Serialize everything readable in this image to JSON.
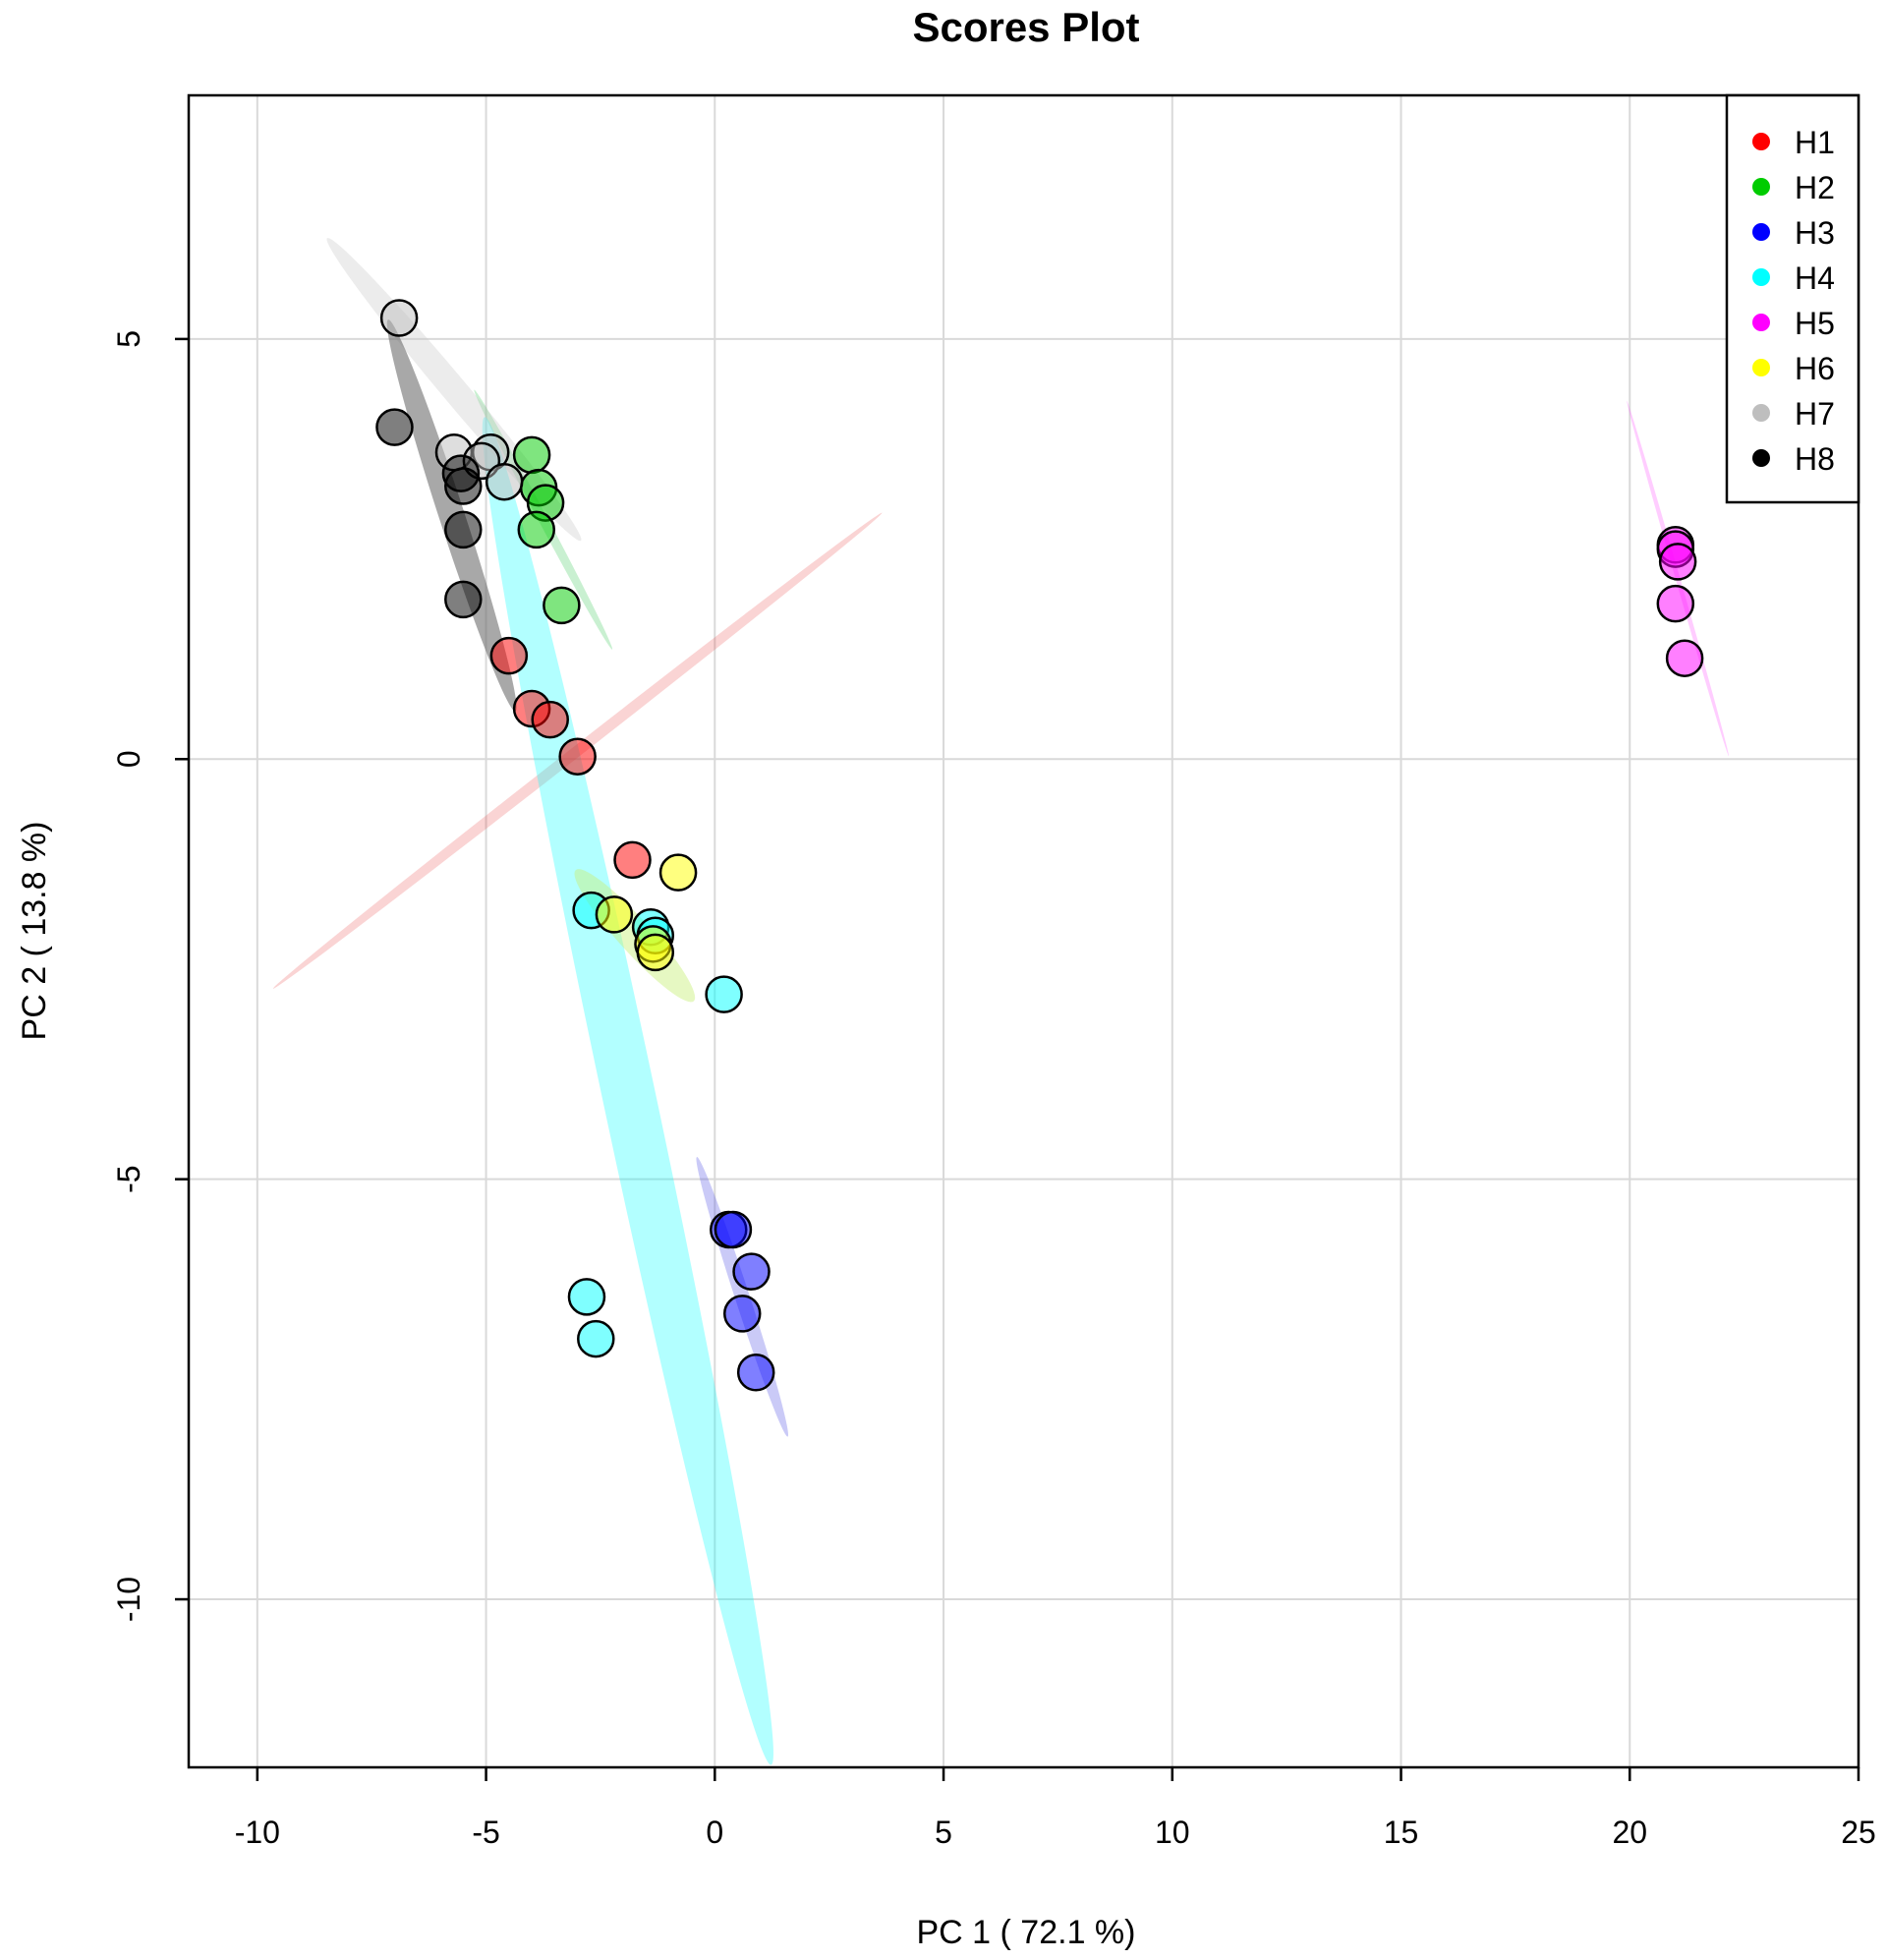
{
  "chart_data": {
    "type": "scatter",
    "title": "Scores Plot",
    "xlabel": "PC 1 ( 72.1 %)",
    "ylabel": "PC 2 ( 13.8 %)",
    "xlim": [
      -11.5,
      25
    ],
    "ylim": [
      -12,
      7.9
    ],
    "xticks": [
      -10,
      -5,
      0,
      5,
      10,
      15,
      20,
      25
    ],
    "yticks": [
      5,
      0,
      -5,
      -10
    ],
    "grid": true,
    "legend_position": "top-right",
    "series": [
      {
        "name": "H1",
        "color": "#ff0000",
        "points": [
          [
            -4.5,
            1.23
          ],
          [
            -4.0,
            0.6
          ],
          [
            -3.6,
            0.47
          ],
          [
            -3.0,
            0.03
          ],
          [
            -1.8,
            -1.2
          ]
        ],
        "ellipse": {
          "center": [
            -3.0,
            0.1
          ],
          "rx_units": 4.6,
          "ry_units": 0.12,
          "angle_deg": -38,
          "fill": "rgba(230,60,60,0.22)"
        }
      },
      {
        "name": "H2",
        "color": "#00cc00",
        "points": [
          [
            -4.0,
            3.62
          ],
          [
            -3.85,
            3.23
          ],
          [
            -3.7,
            3.05
          ],
          [
            -3.9,
            2.73
          ],
          [
            -3.35,
            1.83
          ]
        ],
        "ellipse": {
          "center": [
            -3.75,
            2.85
          ],
          "rx_units": 1.75,
          "ry_units": 0.1,
          "angle_deg": 62,
          "fill": "rgba(60,200,90,0.28)"
        }
      },
      {
        "name": "H3",
        "color": "#0000ff",
        "points": [
          [
            0.3,
            -5.6
          ],
          [
            0.4,
            -5.6
          ],
          [
            0.8,
            -6.1
          ],
          [
            0.6,
            -6.6
          ],
          [
            0.9,
            -7.3
          ]
        ],
        "ellipse": {
          "center": [
            0.6,
            -6.4
          ],
          "rx_units": 1.75,
          "ry_units": 0.16,
          "angle_deg": 72,
          "fill": "rgba(80,80,230,0.3)"
        }
      },
      {
        "name": "H4",
        "color": "#00ffff",
        "points": [
          [
            -2.7,
            -1.8
          ],
          [
            -1.4,
            -2.0
          ],
          [
            -1.3,
            -2.1
          ],
          [
            0.2,
            -2.8
          ],
          [
            -2.8,
            -6.4
          ],
          [
            -2.6,
            -6.9
          ]
        ],
        "ellipse": {
          "center": [
            -1.9,
            -3.95
          ],
          "rx_units": 8.2,
          "ry_units": 0.58,
          "angle_deg": 78,
          "fill": "rgba(0,255,255,0.3)"
        }
      },
      {
        "name": "H5",
        "color": "#ff00ff",
        "points": [
          [
            21.0,
            2.55
          ],
          [
            21.0,
            2.5
          ],
          [
            21.05,
            2.35
          ],
          [
            21.0,
            1.85
          ],
          [
            21.2,
            1.2
          ]
        ],
        "ellipse": {
          "center": [
            21.05,
            2.15
          ],
          "rx_units": 2.2,
          "ry_units": 0.05,
          "angle_deg": 74,
          "fill": "rgba(255,90,255,0.3)"
        }
      },
      {
        "name": "H6",
        "color": "#ffff00",
        "points": [
          [
            -0.8,
            -1.35
          ],
          [
            -2.2,
            -1.85
          ],
          [
            -1.35,
            -2.2
          ],
          [
            -1.3,
            -2.3
          ]
        ],
        "ellipse": {
          "center": [
            -1.75,
            -2.1
          ],
          "rx_units": 1.05,
          "ry_units": 0.36,
          "angle_deg": 48,
          "fill": "rgba(200,240,120,0.45)"
        }
      },
      {
        "name": "H7",
        "color": "#bebebe",
        "points": [
          [
            -6.9,
            5.25
          ],
          [
            -5.7,
            3.65
          ],
          [
            -4.9,
            3.65
          ],
          [
            -5.1,
            3.55
          ],
          [
            -4.6,
            3.3
          ]
        ],
        "ellipse": {
          "center": [
            -5.7,
            4.4
          ],
          "rx_units": 2.35,
          "ry_units": 0.28,
          "angle_deg": 50,
          "fill": "rgba(200,200,200,0.35)"
        }
      },
      {
        "name": "H8",
        "color": "#000000",
        "points": [
          [
            -7.0,
            3.95
          ],
          [
            -5.55,
            3.4
          ],
          [
            -5.5,
            3.25
          ],
          [
            -5.5,
            2.73
          ],
          [
            -5.5,
            1.9
          ]
        ],
        "ellipse": {
          "center": [
            -5.75,
            2.9
          ],
          "rx_units": 2.45,
          "ry_units": 0.28,
          "angle_deg": 72,
          "fill": "rgba(110,110,110,0.6)"
        }
      }
    ]
  }
}
